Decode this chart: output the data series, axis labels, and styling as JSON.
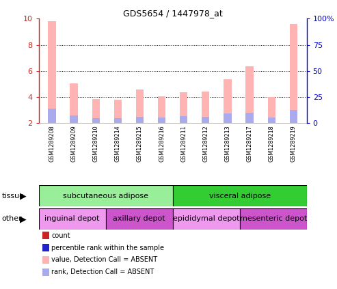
{
  "title": "GDS5654 / 1447978_at",
  "samples": [
    "GSM1289208",
    "GSM1289209",
    "GSM1289210",
    "GSM1289214",
    "GSM1289215",
    "GSM1289216",
    "GSM1289211",
    "GSM1289212",
    "GSM1289213",
    "GSM1289217",
    "GSM1289218",
    "GSM1289219"
  ],
  "value_absent": [
    9.8,
    5.05,
    3.85,
    3.75,
    4.55,
    4.05,
    4.35,
    4.4,
    5.35,
    6.35,
    4.0,
    9.6
  ],
  "rank_absent": [
    3.1,
    2.55,
    2.35,
    2.35,
    2.45,
    2.4,
    2.5,
    2.45,
    2.7,
    2.75,
    2.4,
    3.0
  ],
  "ylim": [
    2,
    10
  ],
  "yticks_left": [
    2,
    4,
    6,
    8,
    10
  ],
  "yticks_right": [
    0,
    25,
    50,
    75,
    100
  ],
  "tissue_groups": [
    {
      "label": "subcutaneous adipose",
      "start": 0,
      "end": 6,
      "color": "#99ee99"
    },
    {
      "label": "visceral adipose",
      "start": 6,
      "end": 12,
      "color": "#33cc33"
    }
  ],
  "other_groups": [
    {
      "label": "inguinal depot",
      "start": 0,
      "end": 3,
      "color": "#ee99ee"
    },
    {
      "label": "axillary depot",
      "start": 3,
      "end": 6,
      "color": "#cc55cc"
    },
    {
      "label": "epididymal depot",
      "start": 6,
      "end": 9,
      "color": "#ee99ee"
    },
    {
      "label": "mesenteric depot",
      "start": 9,
      "end": 12,
      "color": "#cc55cc"
    }
  ],
  "color_value_absent": "#ffb3b3",
  "color_rank_absent": "#aaaaee",
  "color_count": "#cc2222",
  "color_percentile": "#2222cc",
  "bar_width": 0.35,
  "background_color": "#ffffff",
  "grid_color": "#333333",
  "left_tick_color": "#cc2222",
  "right_tick_color": "#0000cc",
  "sample_box_color": "#cccccc",
  "sample_box_border": "#555555"
}
